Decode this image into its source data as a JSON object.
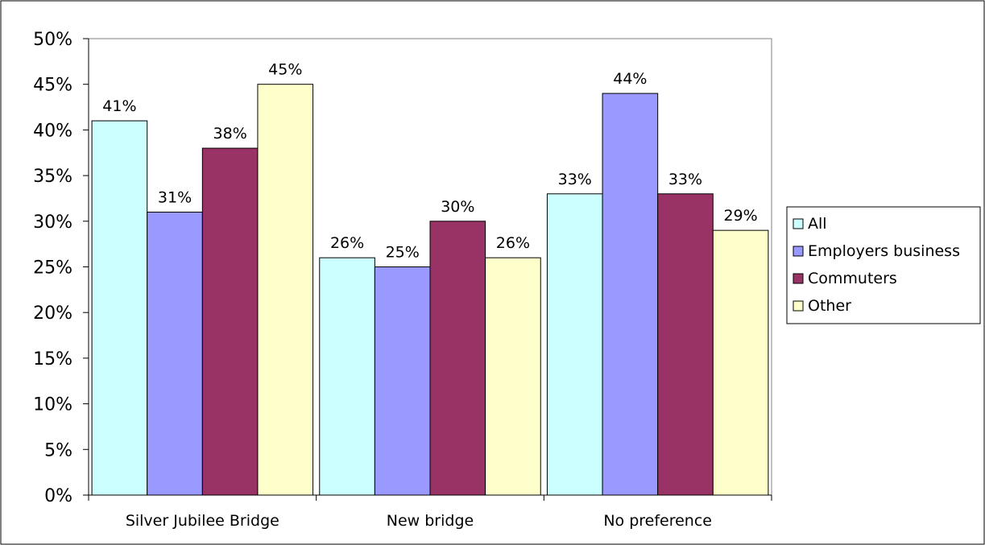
{
  "chart_data": {
    "type": "bar",
    "categories": [
      "Silver Jubilee Bridge",
      "New bridge",
      "No preference"
    ],
    "series": [
      {
        "name": "All",
        "values": [
          41,
          26,
          33
        ],
        "labels": [
          "41%",
          "26%",
          "33%"
        ],
        "color": "#ccffff"
      },
      {
        "name": "Employers business",
        "values": [
          31,
          25,
          44
        ],
        "labels": [
          "31%",
          "25%",
          "44%"
        ],
        "color": "#9999ff"
      },
      {
        "name": "Commuters",
        "values": [
          38,
          30,
          33
        ],
        "labels": [
          "38%",
          "30%",
          "33%"
        ],
        "color": "#993366"
      },
      {
        "name": "Other",
        "values": [
          45,
          26,
          29
        ],
        "labels": [
          "45%",
          "26%",
          "29%"
        ],
        "color": "#ffffcc"
      }
    ],
    "ylim": [
      0,
      50
    ],
    "yticks": [
      "0%",
      "5%",
      "10%",
      "15%",
      "20%",
      "25%",
      "30%",
      "35%",
      "40%",
      "45%",
      "50%"
    ],
    "grid": false,
    "legend_position": "right"
  }
}
